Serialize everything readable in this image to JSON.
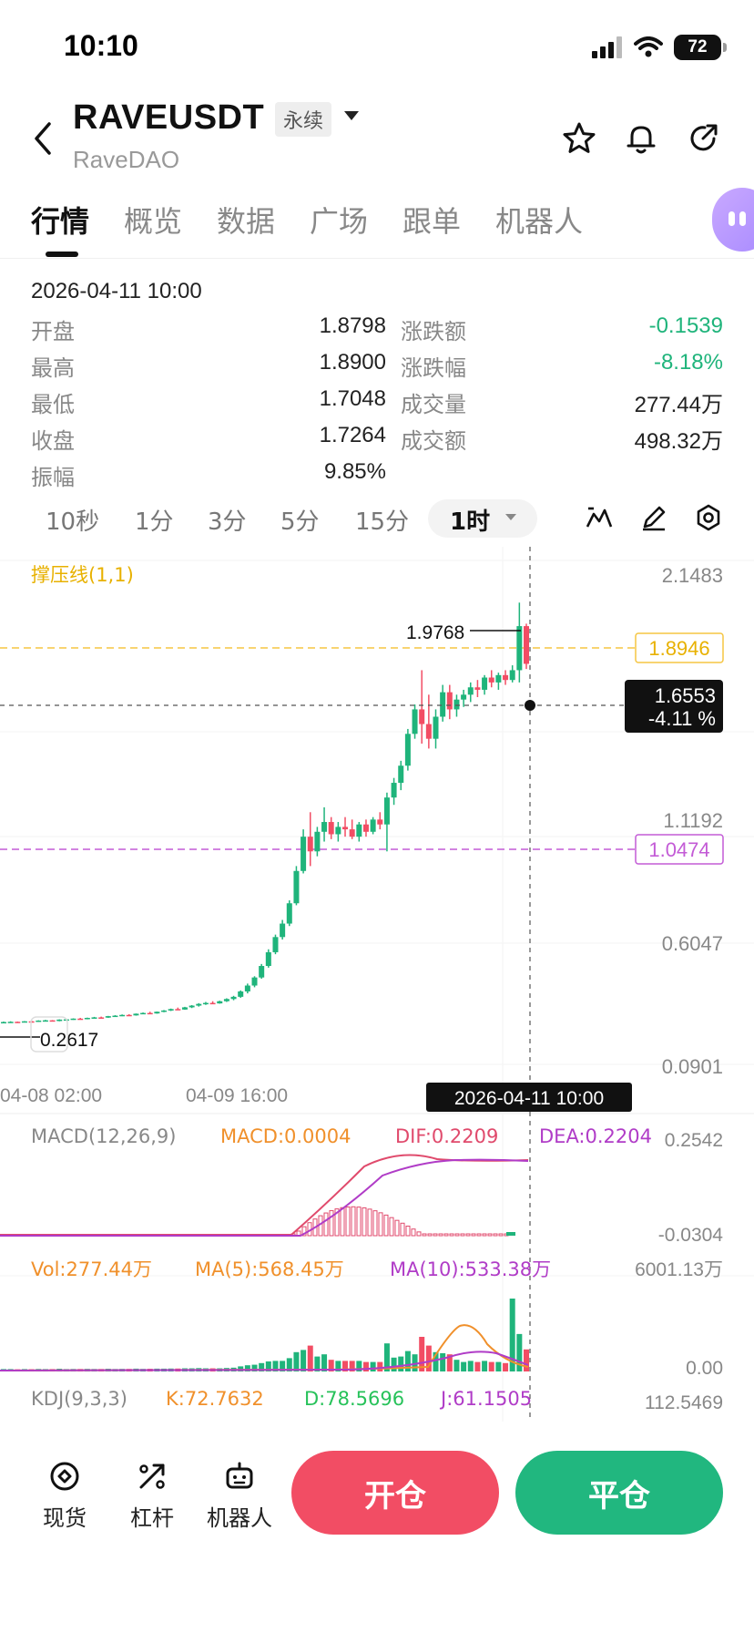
{
  "status_bar": {
    "time": "10:10",
    "battery": "72"
  },
  "header": {
    "symbol": "RAVEUSDT",
    "contract_type": "永续",
    "name": "RaveDAO"
  },
  "tabs": [
    "行情",
    "概览",
    "数据",
    "广场",
    "跟单",
    "机器人"
  ],
  "ohlc": {
    "datetime": "2026-04-11 10:00",
    "rows": [
      {
        "l1": "开盘",
        "v1": "1.8798",
        "l2": "涨跌额",
        "v2": "-0.1539"
      },
      {
        "l1": "最高",
        "v1": "1.8900",
        "l2": "涨跌幅",
        "v2": "-8.18%"
      },
      {
        "l1": "最低",
        "v1": "1.7048",
        "l2": "成交量",
        "v2": "277.44万"
      },
      {
        "l1": "收盘",
        "v1": "1.7264",
        "l2": "成交额",
        "v2": "498.32万"
      },
      {
        "l1": "振幅",
        "v1": "9.85%",
        "l2": "",
        "v2": ""
      }
    ]
  },
  "intervals": [
    "10秒",
    "1分",
    "3分",
    "5分",
    "15分",
    "1时"
  ],
  "active_interval": "1时",
  "chart": {
    "indicator_label": "撑压线(1,1)",
    "y_ticks": [
      "2.1483",
      "1.1192",
      "0.6047",
      "0.0901"
    ],
    "resistance_price": "1.8946",
    "support_price": "1.0474",
    "crosshair_price": "1.6553",
    "crosshair_change": "-4.11 %",
    "high_marker": "1.9768",
    "low_marker": "0.2617",
    "x_ticks": [
      "04-08 02:00",
      "04-09 16:00"
    ],
    "crosshair_time": "2026-04-11 10:00"
  },
  "macd": {
    "title": "MACD(12,26,9)",
    "macd": "MACD:0.0004",
    "dif": "DIF:0.2209",
    "dea": "DEA:0.2204",
    "top": "0.2542",
    "bottom": "-0.0304"
  },
  "volume": {
    "vol": "Vol:277.44万",
    "ma5": "MA(5):568.45万",
    "ma10": "MA(10):533.38万",
    "top": "6001.13万",
    "bottom": "0.00"
  },
  "kdj": {
    "title": "KDJ(9,3,3)",
    "k": "K:72.7632",
    "d": "D:78.5696",
    "j": "J:61.1505",
    "top": "112.5469"
  },
  "bottom_nav": [
    "现货",
    "杠杆",
    "机器人"
  ],
  "actions": {
    "open": "开仓",
    "close": "平仓"
  },
  "colors": {
    "up": "#1fb47b",
    "down": "#f24d64",
    "resistance": "#f5c542",
    "support": "#c35bd6"
  },
  "chart_data": {
    "type": "candlestick",
    "interval": "1时",
    "y_range": [
      0.0901,
      2.1483
    ],
    "resistance": 1.8946,
    "support": 1.0474,
    "candles": [
      [
        0.262,
        0.265,
        0.26,
        0.263
      ],
      [
        0.263,
        0.266,
        0.261,
        0.264
      ],
      [
        0.264,
        0.265,
        0.262,
        0.263
      ],
      [
        0.263,
        0.267,
        0.262,
        0.266
      ],
      [
        0.266,
        0.268,
        0.264,
        0.265
      ],
      [
        0.265,
        0.27,
        0.264,
        0.269
      ],
      [
        0.269,
        0.272,
        0.267,
        0.27
      ],
      [
        0.27,
        0.271,
        0.266,
        0.267
      ],
      [
        0.267,
        0.274,
        0.266,
        0.273
      ],
      [
        0.273,
        0.276,
        0.271,
        0.274
      ],
      [
        0.274,
        0.278,
        0.272,
        0.277
      ],
      [
        0.277,
        0.28,
        0.274,
        0.275
      ],
      [
        0.275,
        0.281,
        0.274,
        0.28
      ],
      [
        0.28,
        0.284,
        0.278,
        0.282
      ],
      [
        0.282,
        0.285,
        0.279,
        0.281
      ],
      [
        0.281,
        0.288,
        0.28,
        0.287
      ],
      [
        0.287,
        0.291,
        0.285,
        0.289
      ],
      [
        0.289,
        0.294,
        0.287,
        0.292
      ],
      [
        0.292,
        0.295,
        0.288,
        0.29
      ],
      [
        0.29,
        0.298,
        0.289,
        0.297
      ],
      [
        0.297,
        0.302,
        0.295,
        0.3
      ],
      [
        0.3,
        0.305,
        0.297,
        0.298
      ],
      [
        0.298,
        0.306,
        0.297,
        0.305
      ],
      [
        0.305,
        0.312,
        0.303,
        0.31
      ],
      [
        0.31,
        0.318,
        0.308,
        0.316
      ],
      [
        0.316,
        0.322,
        0.312,
        0.314
      ],
      [
        0.314,
        0.325,
        0.313,
        0.323
      ],
      [
        0.323,
        0.332,
        0.32,
        0.33
      ],
      [
        0.33,
        0.34,
        0.326,
        0.337
      ],
      [
        0.337,
        0.345,
        0.333,
        0.341
      ],
      [
        0.341,
        0.348,
        0.336,
        0.339
      ],
      [
        0.339,
        0.35,
        0.338,
        0.348
      ],
      [
        0.348,
        0.36,
        0.345,
        0.357
      ],
      [
        0.357,
        0.37,
        0.352,
        0.366
      ],
      [
        0.366,
        0.392,
        0.362,
        0.388
      ],
      [
        0.388,
        0.42,
        0.38,
        0.412
      ],
      [
        0.412,
        0.45,
        0.405,
        0.445
      ],
      [
        0.445,
        0.5,
        0.44,
        0.492
      ],
      [
        0.492,
        0.56,
        0.485,
        0.548
      ],
      [
        0.548,
        0.62,
        0.54,
        0.61
      ],
      [
        0.61,
        0.68,
        0.6,
        0.665
      ],
      [
        0.665,
        0.76,
        0.655,
        0.748
      ],
      [
        0.748,
        0.9,
        0.74,
        0.88
      ],
      [
        0.88,
        1.05,
        0.87,
        1.02
      ],
      [
        1.02,
        1.12,
        0.9,
        0.96
      ],
      [
        0.96,
        1.06,
        0.94,
        1.04
      ],
      [
        1.04,
        1.14,
        1.0,
        1.08
      ],
      [
        1.08,
        1.1,
        1.01,
        1.03
      ],
      [
        1.03,
        1.08,
        1.0,
        1.06
      ],
      [
        1.06,
        1.1,
        1.02,
        1.05
      ],
      [
        1.05,
        1.09,
        1.01,
        1.02
      ],
      [
        1.02,
        1.08,
        1.0,
        1.07
      ],
      [
        1.07,
        1.09,
        1.02,
        1.04
      ],
      [
        1.04,
        1.1,
        1.03,
        1.09
      ],
      [
        1.09,
        1.12,
        1.05,
        1.07
      ],
      [
        1.07,
        1.2,
        0.96,
        1.18
      ],
      [
        1.18,
        1.26,
        1.15,
        1.24
      ],
      [
        1.24,
        1.33,
        1.21,
        1.31
      ],
      [
        1.31,
        1.46,
        1.29,
        1.44
      ],
      [
        1.44,
        1.56,
        1.42,
        1.54
      ],
      [
        1.54,
        1.7,
        1.4,
        1.48
      ],
      [
        1.48,
        1.6,
        1.38,
        1.42
      ],
      [
        1.42,
        1.54,
        1.38,
        1.51
      ],
      [
        1.51,
        1.64,
        1.49,
        1.61
      ],
      [
        1.61,
        1.64,
        1.5,
        1.54
      ],
      [
        1.54,
        1.6,
        1.51,
        1.58
      ],
      [
        1.58,
        1.62,
        1.55,
        1.6
      ],
      [
        1.6,
        1.65,
        1.57,
        1.63
      ],
      [
        1.63,
        1.66,
        1.59,
        1.62
      ],
      [
        1.62,
        1.68,
        1.6,
        1.67
      ],
      [
        1.67,
        1.7,
        1.63,
        1.65
      ],
      [
        1.65,
        1.69,
        1.62,
        1.68
      ],
      [
        1.68,
        1.7,
        1.64,
        1.66
      ],
      [
        1.66,
        1.72,
        1.65,
        1.7
      ],
      [
        1.7,
        1.976,
        1.65,
        1.88
      ],
      [
        1.88,
        1.89,
        1.705,
        1.726
      ]
    ]
  }
}
